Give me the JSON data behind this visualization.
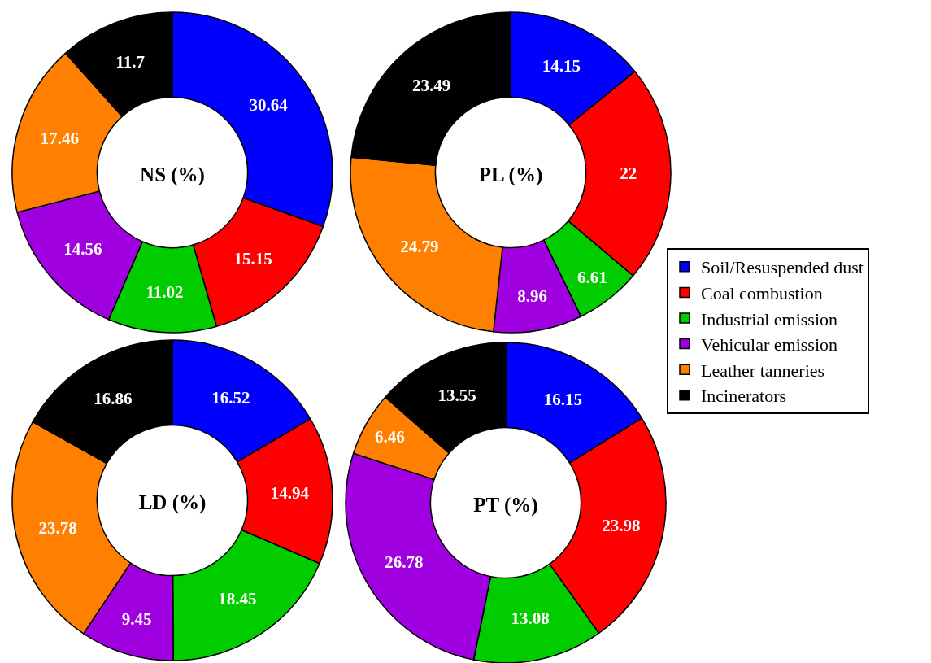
{
  "chart_data": {
    "type": "donut",
    "categories": [
      "Soil/Resuspended dust",
      "Coal combustion",
      "Industrial emission",
      "Vehicular emission",
      "Leather tanneries",
      "Incinerators"
    ],
    "colors": [
      "#0000ff",
      "#ff0000",
      "#00cc00",
      "#a000e0",
      "#ff8000",
      "#000000"
    ],
    "data_labels": true,
    "legend": "right",
    "series": [
      {
        "name": "NS (%)",
        "values": [
          30.64,
          15.15,
          11.02,
          14.56,
          17.46,
          11.7
        ]
      },
      {
        "name": "PL (%)",
        "values": [
          14.15,
          22,
          6.61,
          8.96,
          24.79,
          23.49
        ]
      },
      {
        "name": "LD (%)",
        "values": [
          16.52,
          14.94,
          18.45,
          9.45,
          23.78,
          16.86
        ]
      },
      {
        "name": "PT (%)",
        "values": [
          16.15,
          23.98,
          13.08,
          26.78,
          6.46,
          13.55
        ]
      }
    ]
  }
}
